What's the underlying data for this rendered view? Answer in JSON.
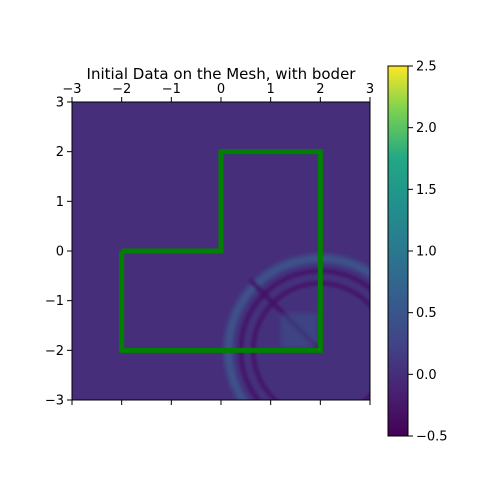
{
  "chart_data": [
    {
      "type": "heatmap",
      "title": "Initial Data on the Mesh, with boder",
      "xlabel": "",
      "ylabel": "",
      "xlim": [
        -3,
        3
      ],
      "ylim": [
        -3,
        3
      ],
      "x_ticks": [
        -3,
        -2,
        -1,
        0,
        1,
        2,
        3
      ],
      "y_ticks": [
        -3,
        -2,
        -1,
        0,
        1,
        2,
        3
      ],
      "x_tick_labels": [
        "−3",
        "−2",
        "−1",
        "0",
        "1",
        "2",
        "3"
      ],
      "y_tick_labels": [
        "−3",
        "−2",
        "−1",
        "0",
        "1",
        "2",
        "3"
      ],
      "x_ticks_top_and_bottom": true,
      "x_tick_labels_position": "top",
      "grid": false,
      "colormap": "viridis",
      "background_value": 0.0,
      "features": {
        "wave_center": [
          2.0,
          -2.0
        ],
        "outer_ring_radius": 1.85,
        "dark_arc_radii": [
          1.35,
          1.6
        ],
        "dark_line_through_center_direction_deg": 135,
        "bright_patch_value": 0.6
      },
      "border": {
        "color": "#008000",
        "points": [
          [
            -2,
            0
          ],
          [
            0,
            0
          ],
          [
            0,
            2
          ],
          [
            2,
            2
          ],
          [
            2,
            -2
          ],
          [
            -2,
            -2
          ],
          [
            -2,
            0
          ]
        ]
      },
      "colorbar": {
        "vmin": -0.5,
        "vmax": 2.5,
        "ticks": [
          -0.5,
          0.0,
          0.5,
          1.0,
          1.5,
          2.0,
          2.5
        ],
        "tick_labels": [
          "−0.5",
          "0.0",
          "0.5",
          "1.0",
          "1.5",
          "2.0",
          "2.5"
        ]
      }
    }
  ]
}
